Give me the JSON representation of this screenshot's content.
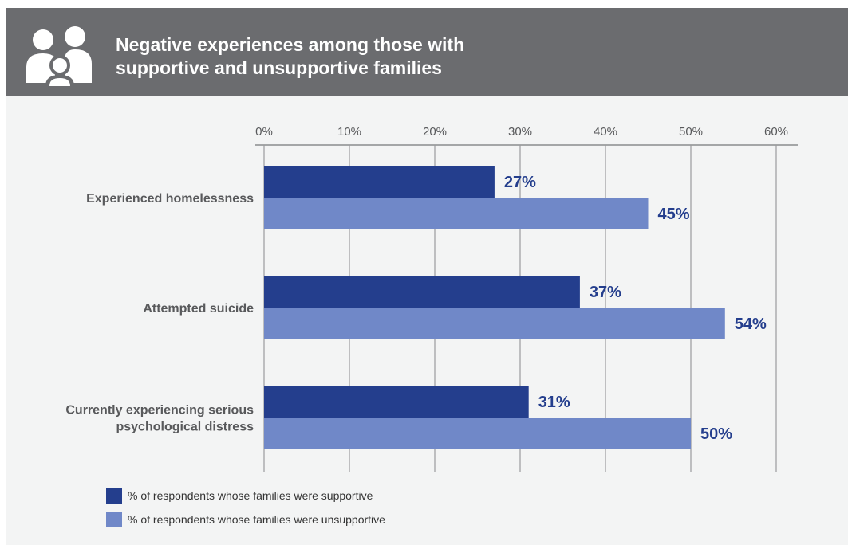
{
  "header": {
    "title_line1": "Negative experiences among those with",
    "title_line2": "supportive and unsupportive families",
    "icon": "family-icon"
  },
  "chart_data": {
    "type": "bar",
    "orientation": "horizontal",
    "categories": [
      "Experienced homelessness",
      "Attempted suicide",
      "Currently experiencing serious psychological distress"
    ],
    "category_lines": [
      [
        "Experienced homelessness"
      ],
      [
        "Attempted suicide"
      ],
      [
        "Currently experiencing serious",
        "psychological distress"
      ]
    ],
    "series": [
      {
        "name": "% of respondents whose families were supportive",
        "values": [
          27,
          37,
          31
        ],
        "labels": [
          "27%",
          "37%",
          "31%"
        ],
        "color": "#243e8d"
      },
      {
        "name": "% of respondents whose families were unsupportive",
        "values": [
          45,
          54,
          50
        ],
        "labels": [
          "45%",
          "54%",
          "50%"
        ],
        "color": "#7088c8"
      }
    ],
    "x_ticks": [
      "0%",
      "10%",
      "20%",
      "30%",
      "40%",
      "50%",
      "60%"
    ],
    "xlim": [
      0,
      60
    ],
    "grid": true,
    "axis_position": "top",
    "legend_placement": "bottom-left"
  },
  "colors": {
    "header_bg": "#6b6c6f",
    "plot_bg": "#f3f4f4",
    "label_color": "#243e8d"
  }
}
